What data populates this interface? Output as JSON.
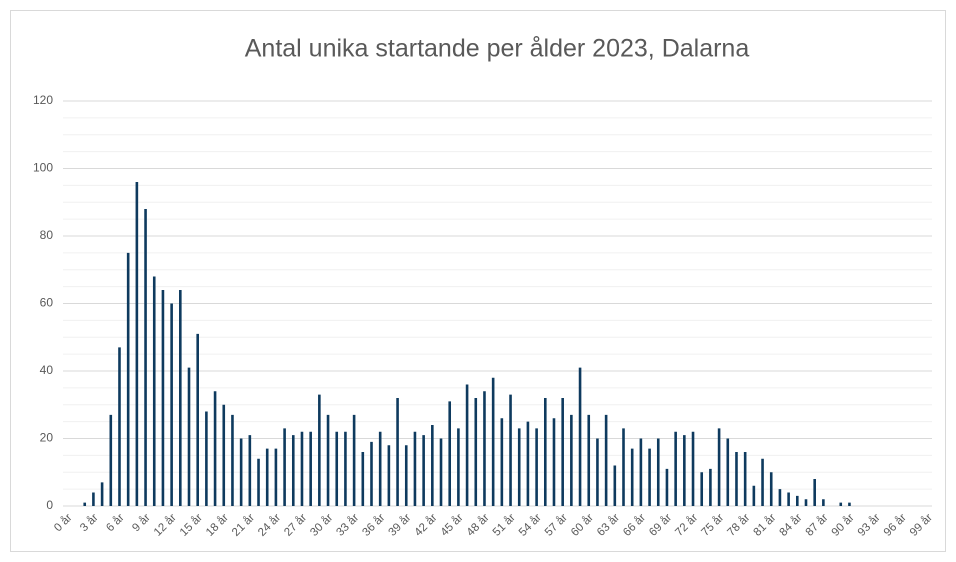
{
  "chart_data": {
    "type": "bar",
    "title": "Antal unika startande per ålder 2023, Dalarna",
    "categories": [
      "0 år",
      null,
      null,
      "3 år",
      null,
      null,
      "6 år",
      null,
      null,
      "9 år",
      null,
      null,
      "12 år",
      null,
      null,
      "15 år",
      null,
      null,
      "18 år",
      null,
      null,
      "21 år",
      null,
      null,
      "24 år",
      null,
      null,
      "27 år",
      null,
      null,
      "30 år",
      null,
      null,
      "33 år",
      null,
      null,
      "36 år",
      null,
      null,
      "39 år",
      null,
      null,
      "42 år",
      null,
      null,
      "45 år",
      null,
      null,
      "48 år",
      null,
      null,
      "51 år",
      null,
      null,
      "54 år",
      null,
      null,
      "57 år",
      null,
      null,
      "60 år",
      null,
      null,
      "63 år",
      null,
      null,
      "66 år",
      null,
      null,
      "69 år",
      null,
      null,
      "72 år",
      null,
      null,
      "75 år",
      null,
      null,
      "78 år",
      null,
      null,
      "81 år",
      null,
      null,
      "84 år",
      null,
      null,
      "87 år",
      null,
      null,
      "90 år",
      null,
      null,
      "93 år",
      null,
      null,
      "96 år",
      null,
      null,
      "99 år"
    ],
    "values": [
      0,
      0,
      1,
      4,
      7,
      27,
      47,
      75,
      96,
      88,
      68,
      64,
      60,
      64,
      41,
      51,
      28,
      34,
      30,
      27,
      20,
      21,
      14,
      17,
      17,
      23,
      21,
      22,
      22,
      33,
      27,
      22,
      22,
      27,
      16,
      19,
      22,
      18,
      32,
      18,
      22,
      21,
      24,
      20,
      31,
      23,
      36,
      32,
      34,
      38,
      26,
      33,
      23,
      25,
      23,
      32,
      26,
      32,
      27,
      41,
      27,
      20,
      27,
      12,
      23,
      17,
      20,
      17,
      20,
      11,
      22,
      21,
      22,
      10,
      11,
      23,
      20,
      16,
      16,
      6,
      14,
      10,
      5,
      4,
      3,
      2,
      8,
      2,
      0,
      1,
      1,
      0,
      0,
      0,
      0,
      0,
      0,
      0,
      0,
      0
    ],
    "color": "#0e3a5e",
    "ylim": [
      0,
      120
    ],
    "yticks": [
      0,
      20,
      40,
      60,
      80,
      100,
      120
    ],
    "grid": true
  }
}
